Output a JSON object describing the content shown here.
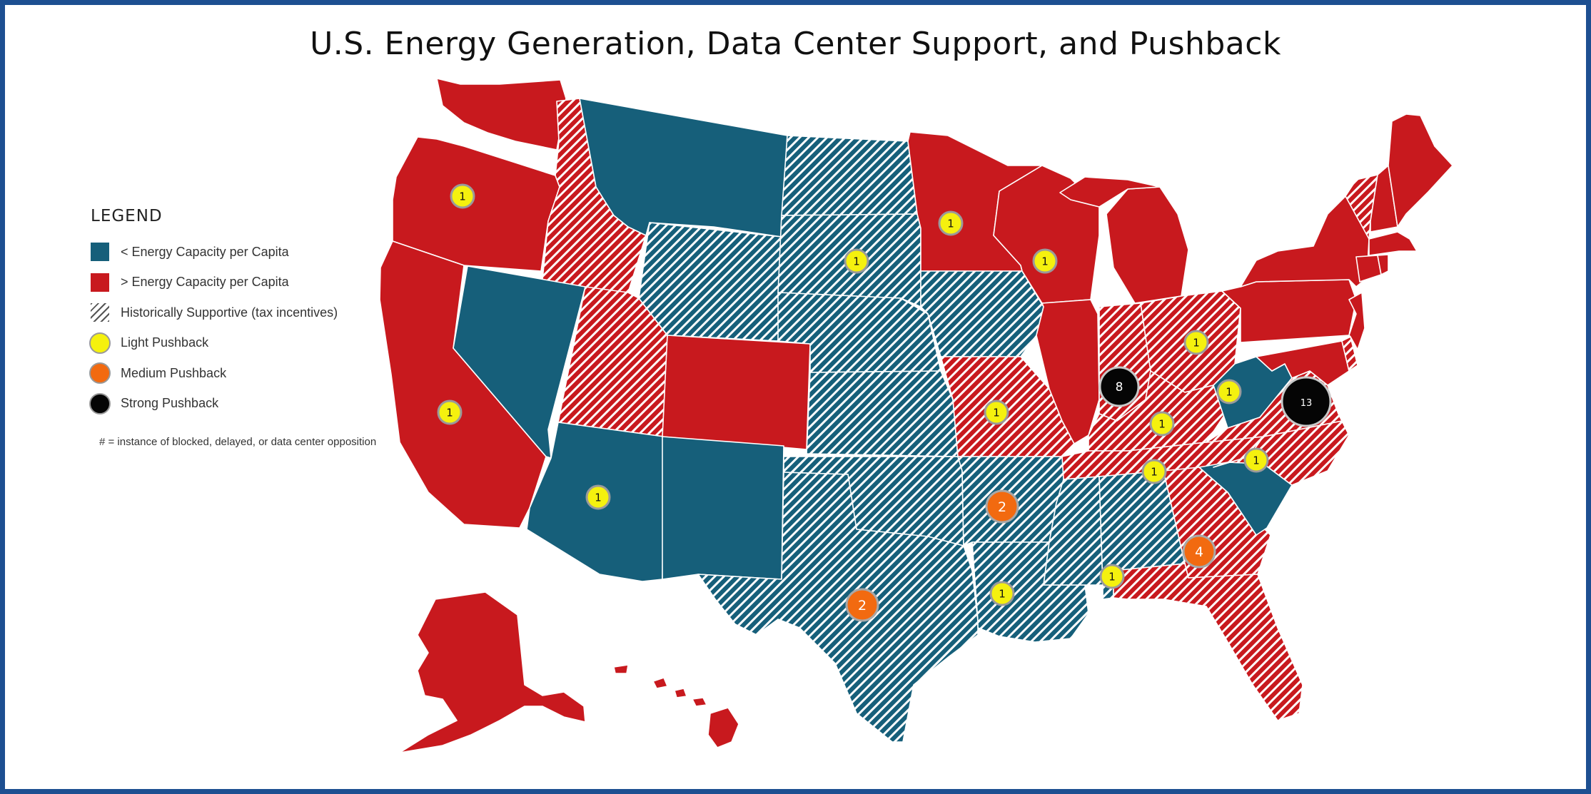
{
  "title": "U.S. Energy Generation, Data Center Support, and Pushback",
  "legend": {
    "heading": "LEGEND",
    "items": [
      {
        "label": "< Energy Capacity per Capita",
        "swatch": "blue"
      },
      {
        "label": "> Energy Capacity per Capita",
        "swatch": "red"
      },
      {
        "label": "Historically Supportive (tax incentives)",
        "swatch": "hatch"
      },
      {
        "label": "Light Pushback",
        "swatch": "yellow"
      },
      {
        "label": "Medium Pushback",
        "swatch": "orange"
      },
      {
        "label": "Strong Pushback",
        "swatch": "black"
      }
    ],
    "note": "# = instance of blocked, delayed, or data center opposition"
  },
  "colors": {
    "below_capacity": "#165f7a",
    "above_capacity": "#c8191e",
    "light": "#f5f10e",
    "medium": "#f26a10",
    "strong": "#050505",
    "frame": "#1d4f91"
  },
  "markers": [
    {
      "state": "Oregon",
      "level": "light",
      "count": "1"
    },
    {
      "state": "California",
      "level": "light",
      "count": "1"
    },
    {
      "state": "Arizona",
      "level": "light",
      "count": "1"
    },
    {
      "state": "Minnesota",
      "level": "light",
      "count": "1"
    },
    {
      "state": "South Dakota",
      "level": "light",
      "count": "1"
    },
    {
      "state": "Wisconsin",
      "level": "light",
      "count": "1"
    },
    {
      "state": "Missouri",
      "level": "light",
      "count": "1"
    },
    {
      "state": "Ohio",
      "level": "light",
      "count": "1"
    },
    {
      "state": "West Virginia",
      "level": "light",
      "count": "1"
    },
    {
      "state": "Kentucky",
      "level": "light",
      "count": "1"
    },
    {
      "state": "Tennessee",
      "level": "light",
      "count": "1"
    },
    {
      "state": "North Carolina",
      "level": "light",
      "count": "1"
    },
    {
      "state": "Louisiana",
      "level": "light",
      "count": "1"
    },
    {
      "state": "Alabama",
      "level": "light",
      "count": "1"
    },
    {
      "state": "Arkansas",
      "level": "medium",
      "count": "2"
    },
    {
      "state": "Texas",
      "level": "medium",
      "count": "2"
    },
    {
      "state": "Georgia",
      "level": "medium",
      "count": "4"
    },
    {
      "state": "Indiana",
      "level": "strong",
      "count": "8"
    },
    {
      "state": "Virginia",
      "level": "strong",
      "count": "13"
    }
  ]
}
